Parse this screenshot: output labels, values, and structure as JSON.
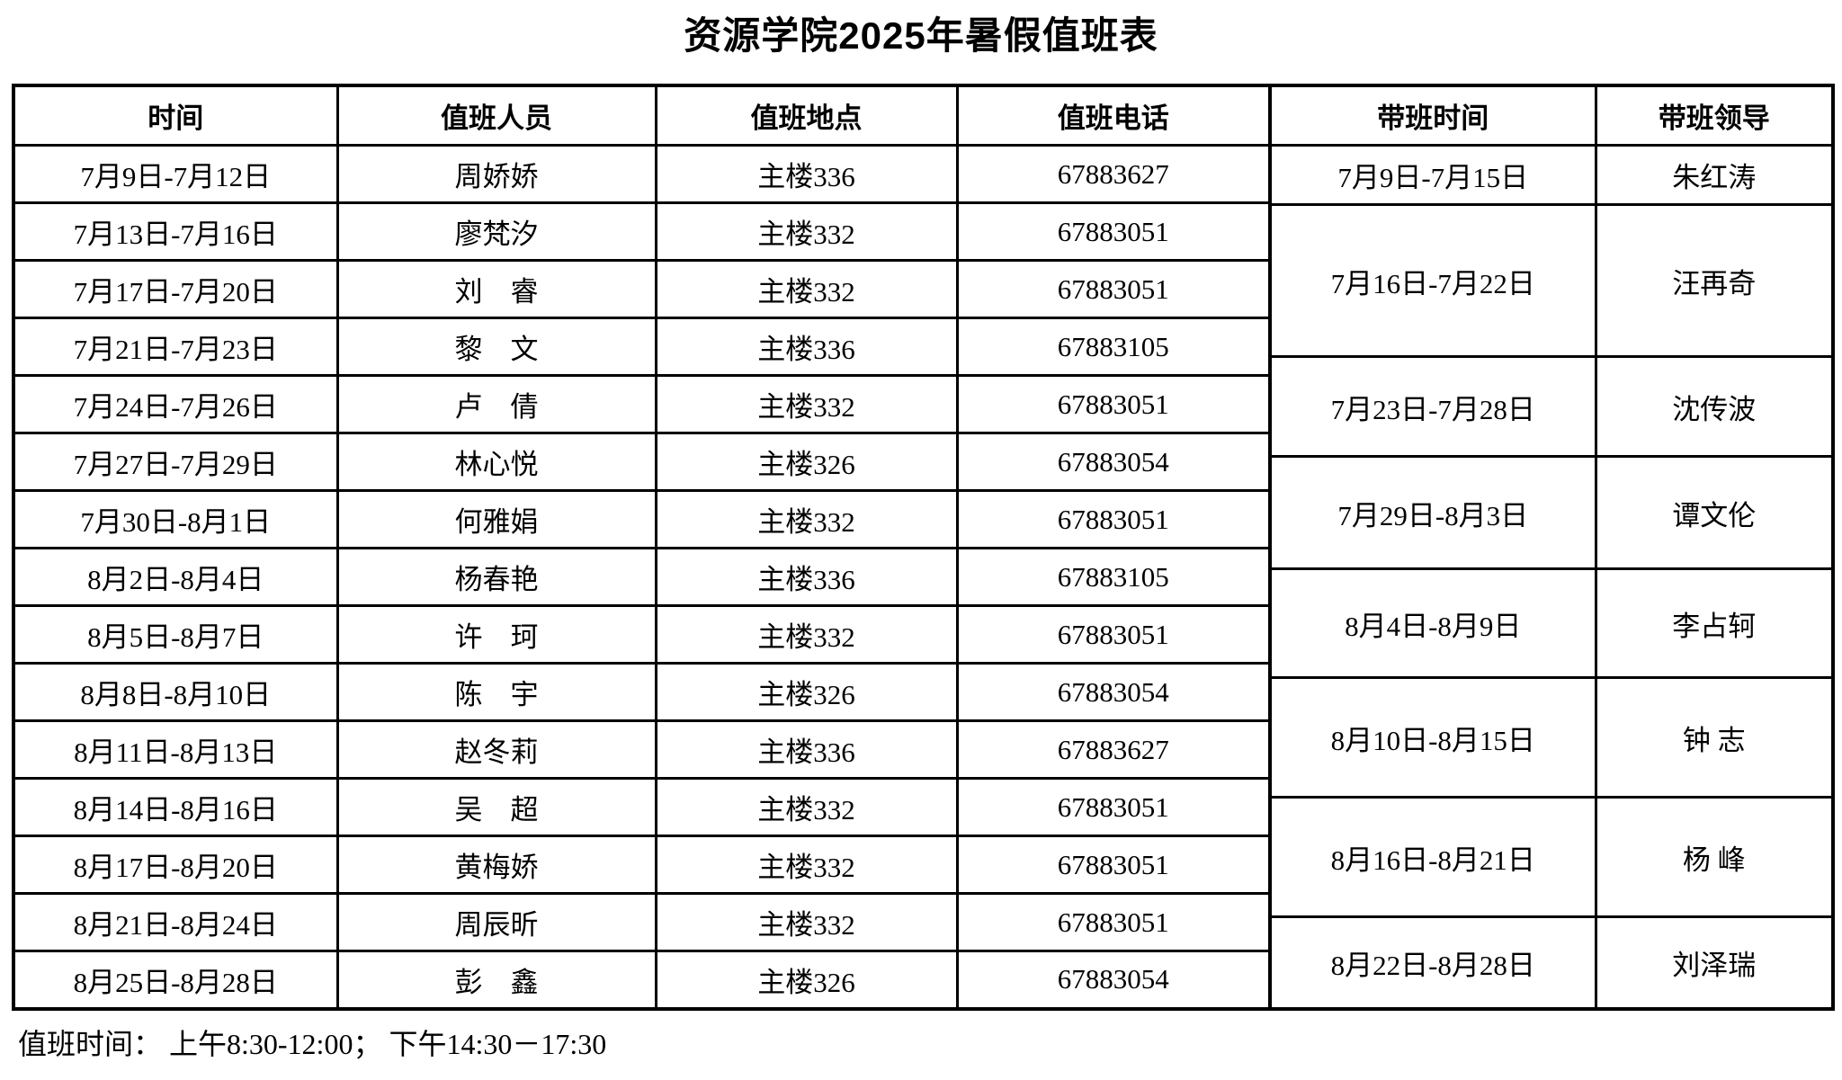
{
  "title": "资源学院2025年暑假值班表",
  "table": {
    "headers": {
      "time": "时间",
      "person": "值班人员",
      "location": "值班地点",
      "phone": "值班电话",
      "leader_time": "带班时间",
      "leader": "带班领导"
    },
    "duty_rows": [
      {
        "time": "7月9日-7月12日",
        "person": "周娇娇",
        "location": "主楼336",
        "phone": "67883627"
      },
      {
        "time": "7月13日-7月16日",
        "person": "廖梵汐",
        "location": "主楼332",
        "phone": "67883051"
      },
      {
        "time": "7月17日-7月20日",
        "person": "刘　睿",
        "location": "主楼332",
        "phone": "67883051"
      },
      {
        "time": "7月21日-7月23日",
        "person": "黎　文",
        "location": "主楼336",
        "phone": "67883105"
      },
      {
        "time": "7月24日-7月26日",
        "person": "卢　倩",
        "location": "主楼332",
        "phone": "67883051"
      },
      {
        "time": "7月27日-7月29日",
        "person": "林心悦",
        "location": "主楼326",
        "phone": "67883054"
      },
      {
        "time": "7月30日-8月1日",
        "person": "何雅娟",
        "location": "主楼332",
        "phone": "67883051"
      },
      {
        "time": "8月2日-8月4日",
        "person": "杨春艳",
        "location": "主楼336",
        "phone": "67883105"
      },
      {
        "time": "8月5日-8月7日",
        "person": "许　珂",
        "location": "主楼332",
        "phone": "67883051"
      },
      {
        "time": "8月8日-8月10日",
        "person": "陈　宇",
        "location": "主楼326",
        "phone": "67883054"
      },
      {
        "time": "8月11日-8月13日",
        "person": "赵冬莉",
        "location": "主楼336",
        "phone": "67883627"
      },
      {
        "time": "8月14日-8月16日",
        "person": "吴　超",
        "location": "主楼332",
        "phone": "67883051"
      },
      {
        "time": "8月17日-8月20日",
        "person": "黄梅娇",
        "location": "主楼332",
        "phone": "67883051"
      },
      {
        "time": "8月21日-8月24日",
        "person": "周辰昕",
        "location": "主楼332",
        "phone": "67883051"
      },
      {
        "time": "8月25日-8月28日",
        "person": "彭　鑫",
        "location": "主楼326",
        "phone": "67883054"
      }
    ],
    "leader_rows": [
      {
        "time": "7月9日-7月15日",
        "leader": "朱红涛"
      },
      {
        "time": "7月16日-7月22日",
        "leader": "汪再奇"
      },
      {
        "time": "7月23日-7月28日",
        "leader": "沈传波"
      },
      {
        "time": "7月29日-8月3日",
        "leader": "谭文伦"
      },
      {
        "time": "8月4日-8月9日",
        "leader": "李占轲"
      },
      {
        "time": "8月10日-8月15日",
        "leader": "钟 志"
      },
      {
        "time": "8月16日-8月21日",
        "leader": "杨 峰"
      },
      {
        "time": "8月22日-8月28日",
        "leader": "刘泽瑞"
      }
    ]
  },
  "footer_note": "值班时间：  上午8:30-12:00；  下午14:30－17:30"
}
